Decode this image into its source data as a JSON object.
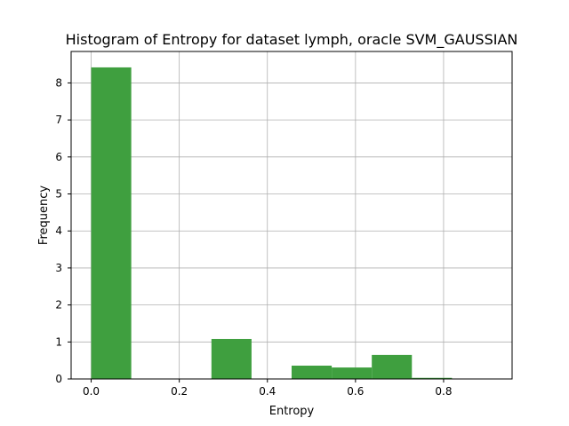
{
  "chart_data": {
    "type": "bar",
    "title": "Histogram of Entropy for dataset lymph, oracle SVM_GAUSSIAN",
    "xlabel": "Entropy",
    "ylabel": "Frequency",
    "xlim": [
      -0.0455,
      0.9555
    ],
    "ylim": [
      0,
      8.85
    ],
    "xticks": [
      0.0,
      0.2,
      0.4,
      0.6,
      0.8
    ],
    "xtick_labels": [
      "0.0",
      "0.2",
      "0.4",
      "0.6",
      "0.8"
    ],
    "yticks": [
      0,
      1,
      2,
      3,
      4,
      5,
      6,
      7,
      8
    ],
    "ytick_labels": [
      "0",
      "1",
      "2",
      "3",
      "4",
      "5",
      "6",
      "7",
      "8"
    ],
    "grid": true,
    "bar_color": "#3f9f3f",
    "bins": [
      {
        "x0": 0.0,
        "x1": 0.091,
        "value": 8.42
      },
      {
        "x0": 0.091,
        "x1": 0.182,
        "value": 0
      },
      {
        "x0": 0.182,
        "x1": 0.273,
        "value": 0
      },
      {
        "x0": 0.273,
        "x1": 0.364,
        "value": 1.08
      },
      {
        "x0": 0.364,
        "x1": 0.455,
        "value": 0
      },
      {
        "x0": 0.455,
        "x1": 0.546,
        "value": 0.36
      },
      {
        "x0": 0.546,
        "x1": 0.637,
        "value": 0.31
      },
      {
        "x0": 0.637,
        "x1": 0.728,
        "value": 0.65
      },
      {
        "x0": 0.728,
        "x1": 0.819,
        "value": 0.03
      },
      {
        "x0": 0.819,
        "x1": 0.91,
        "value": 0
      }
    ]
  }
}
